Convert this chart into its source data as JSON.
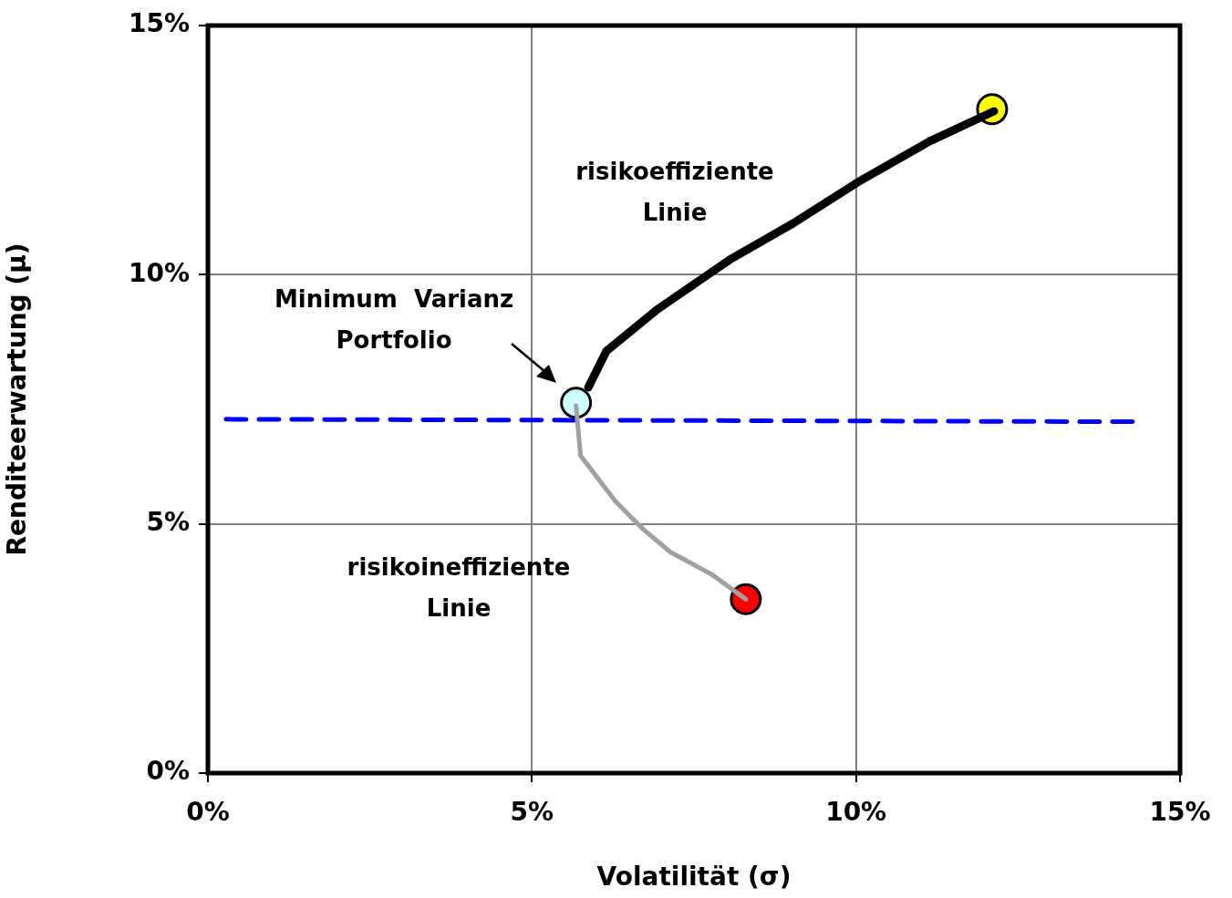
{
  "chart_data": {
    "type": "line",
    "xlabel": "Volatilität (σ)",
    "ylabel": "Renditeerwartung (μ)",
    "xlim": [
      0,
      15
    ],
    "ylim": [
      0,
      15
    ],
    "xticks": [
      {
        "value": 0,
        "label": "0%"
      },
      {
        "value": 5,
        "label": "5%"
      },
      {
        "value": 10,
        "label": "10%"
      },
      {
        "value": 15,
        "label": "15%"
      }
    ],
    "yticks": [
      {
        "value": 0,
        "label": "0%"
      },
      {
        "value": 5,
        "label": "5%"
      },
      {
        "value": 10,
        "label": "10%"
      },
      {
        "value": 15,
        "label": "15%"
      }
    ],
    "grid": true,
    "legend": false,
    "series": [
      {
        "marker": "none",
        "color": "#000000",
        "x": [
          5.87,
          6.15,
          6.92,
          8.05,
          9.03,
          10.02,
          11.14,
          12.13
        ],
        "values": [
          7.74,
          8.47,
          9.29,
          10.3,
          11.03,
          11.85,
          12.68,
          13.28
        ]
      },
      {
        "marker": "none",
        "color": "#a0a0a0",
        "x": [
          5.68,
          5.75,
          6.29,
          6.71,
          7.13,
          7.77,
          8.3
        ],
        "values": [
          7.37,
          6.37,
          5.45,
          4.9,
          4.44,
          3.99,
          3.49
        ]
      },
      {
        "marker": "none",
        "color": "#0000ff",
        "line_style": "dashed",
        "x": [
          0.28,
          14.3
        ],
        "values": [
          7.1,
          7.05
        ]
      },
      {
        "type": "scatter",
        "marker": "circle",
        "colors": [
          "#ccffff",
          "#ffff00",
          "#ff0000"
        ],
        "x": [
          5.68,
          12.1,
          8.3
        ],
        "values": [
          7.43,
          13.32,
          3.49
        ]
      }
    ],
    "annotations": [
      "risikoeffiziente\nLinie",
      "Minimum  Varianz\nPortfolio",
      "risikoineffiziente\nLinie"
    ]
  }
}
